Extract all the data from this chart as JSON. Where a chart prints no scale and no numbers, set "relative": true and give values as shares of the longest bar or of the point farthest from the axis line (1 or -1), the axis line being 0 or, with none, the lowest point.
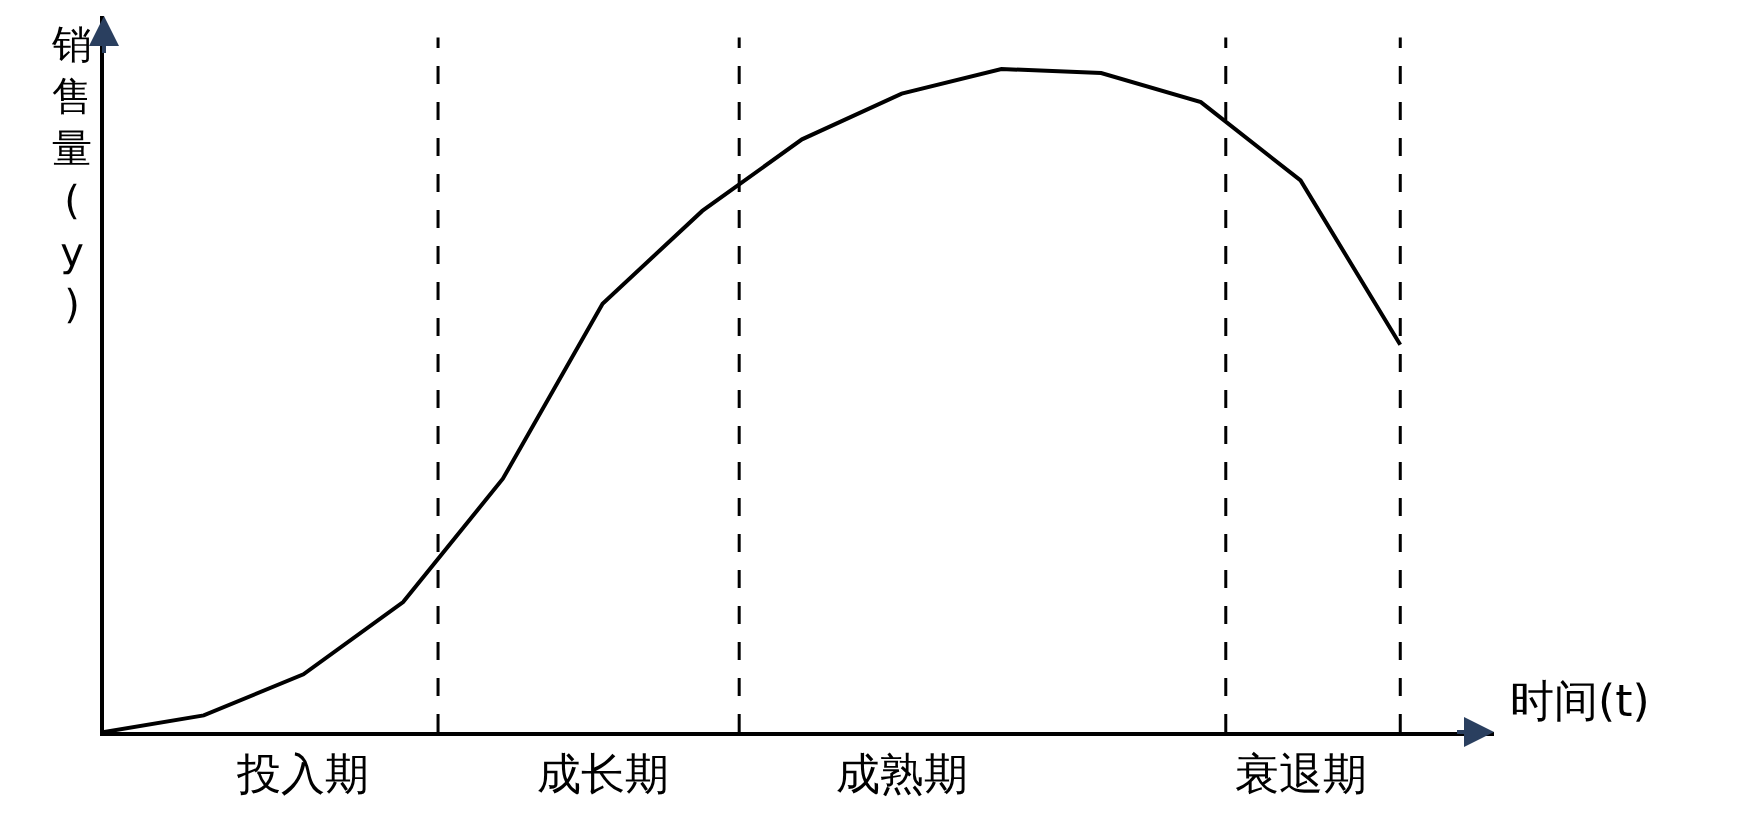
{
  "chart_data": {
    "type": "line",
    "relative": true,
    "xlabel": "时间(t)",
    "ylabel": "销售量(y)",
    "tick_labels": "x",
    "categories": [
      null,
      null,
      "投入期",
      null,
      null,
      "成长期",
      null,
      null,
      "成熟期",
      null,
      null,
      null,
      "衰退期",
      null
    ],
    "series": [
      {
        "color": "#000000",
        "values": [
          0,
          0.025,
          0.087,
          0.196,
          0.382,
          0.646,
          0.786,
          0.894,
          0.963,
          1,
          0.994,
          0.95,
          0.832,
          0.584
        ]
      }
    ]
  }
}
